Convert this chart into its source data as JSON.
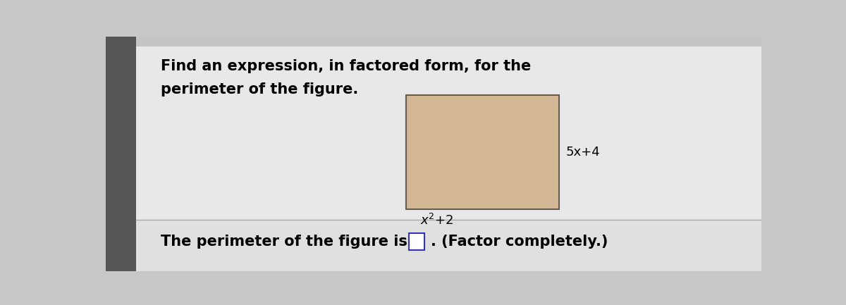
{
  "outer_bg": "#c8c8c8",
  "card_bg": "#e8e8e8",
  "bottom_bg": "#e0e0e0",
  "left_shadow": "#555555",
  "instruction_line1": "Find an expression, in factored form, for the",
  "instruction_line2": "perimeter of the figure.",
  "rect_fill": "#d4b896",
  "rect_edge_color": "#6a5a4a",
  "label_right": "5x+4",
  "label_bottom_pre": "x",
  "label_bottom_sup": "2",
  "label_bottom_post": "+2",
  "bottom_prefix": "The perimeter of the figure is",
  "bottom_suffix": ". (Factor completely.)",
  "box_border_color": "#3333bb",
  "divider_color": "#aaaaaa",
  "font_size_main": 15,
  "font_size_label": 13,
  "font_size_bottom": 15
}
